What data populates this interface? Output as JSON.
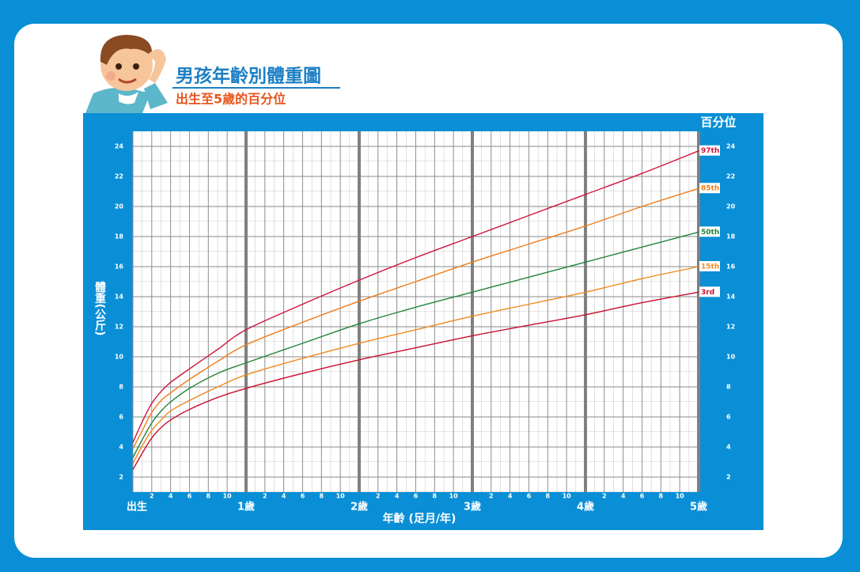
{
  "chart_data": {
    "type": "line",
    "title": "男孩年齡別體重圖",
    "subtitle": "出生至5歲的百分位",
    "x_label": "年齡 (足月/年)",
    "y_label": "體重(公斤)",
    "legend_title": "百分位",
    "x": [
      0,
      1,
      2,
      3,
      4,
      6,
      9,
      12,
      18,
      24,
      30,
      36,
      42,
      48,
      54,
      60
    ],
    "series": [
      {
        "name": "97th",
        "color": "#d0143c",
        "values": [
          4.3,
          5.7,
          6.9,
          7.7,
          8.3,
          9.2,
          10.5,
          11.8,
          13.5,
          15.1,
          16.6,
          18.0,
          19.4,
          20.8,
          22.2,
          23.7
        ]
      },
      {
        "name": "85th",
        "color": "#ef7d1a",
        "values": [
          3.9,
          5.1,
          6.3,
          7.1,
          7.6,
          8.5,
          9.7,
          10.8,
          12.3,
          13.7,
          15.0,
          16.3,
          17.5,
          18.7,
          20.0,
          21.2
        ]
      },
      {
        "name": "50th",
        "color": "#23843a",
        "values": [
          3.3,
          4.5,
          5.6,
          6.4,
          7.0,
          7.9,
          8.9,
          9.6,
          10.9,
          12.2,
          13.3,
          14.3,
          15.3,
          16.3,
          17.3,
          18.3
        ]
      },
      {
        "name": "15th",
        "color": "#f08a1e",
        "values": [
          2.9,
          4.1,
          5.1,
          5.8,
          6.4,
          7.1,
          8.0,
          8.8,
          9.9,
          10.9,
          11.8,
          12.7,
          13.5,
          14.3,
          15.2,
          16.0
        ]
      },
      {
        "name": "3rd",
        "color": "#c8102e",
        "values": [
          2.5,
          3.6,
          4.6,
          5.3,
          5.8,
          6.5,
          7.3,
          7.9,
          8.9,
          9.8,
          10.6,
          11.4,
          12.1,
          12.8,
          13.6,
          14.3
        ]
      }
    ],
    "xlim": [
      0,
      60
    ],
    "ylim": [
      1,
      25
    ],
    "xticks": [
      {
        "value": 0,
        "label": "出生"
      },
      2,
      4,
      6,
      8,
      10,
      {
        "value": 12,
        "label": "1歲"
      },
      {
        "value": 14,
        "label": "2"
      },
      {
        "value": 16,
        "label": "4"
      },
      {
        "value": 18,
        "label": "6"
      },
      {
        "value": 20,
        "label": "8"
      },
      {
        "value": 22,
        "label": "10"
      },
      {
        "value": 24,
        "label": "2歲"
      },
      {
        "value": 26,
        "label": "2"
      },
      {
        "value": 28,
        "label": "4"
      },
      {
        "value": 30,
        "label": "6"
      },
      {
        "value": 32,
        "label": "8"
      },
      {
        "value": 34,
        "label": "10"
      },
      {
        "value": 36,
        "label": "3歲"
      },
      {
        "value": 38,
        "label": "2"
      },
      {
        "value": 40,
        "label": "4"
      },
      {
        "value": 42,
        "label": "6"
      },
      {
        "value": 44,
        "label": "8"
      },
      {
        "value": 46,
        "label": "10"
      },
      {
        "value": 48,
        "label": "4歲"
      },
      {
        "value": 50,
        "label": "2"
      },
      {
        "value": 52,
        "label": "4"
      },
      {
        "value": 54,
        "label": "6"
      },
      {
        "value": 56,
        "label": "8"
      },
      {
        "value": 58,
        "label": "10"
      },
      {
        "value": 60,
        "label": "5歲"
      }
    ],
    "yticks": [
      2,
      4,
      6,
      8,
      10,
      12,
      14,
      16,
      18,
      20,
      22,
      24
    ],
    "grid": true
  }
}
